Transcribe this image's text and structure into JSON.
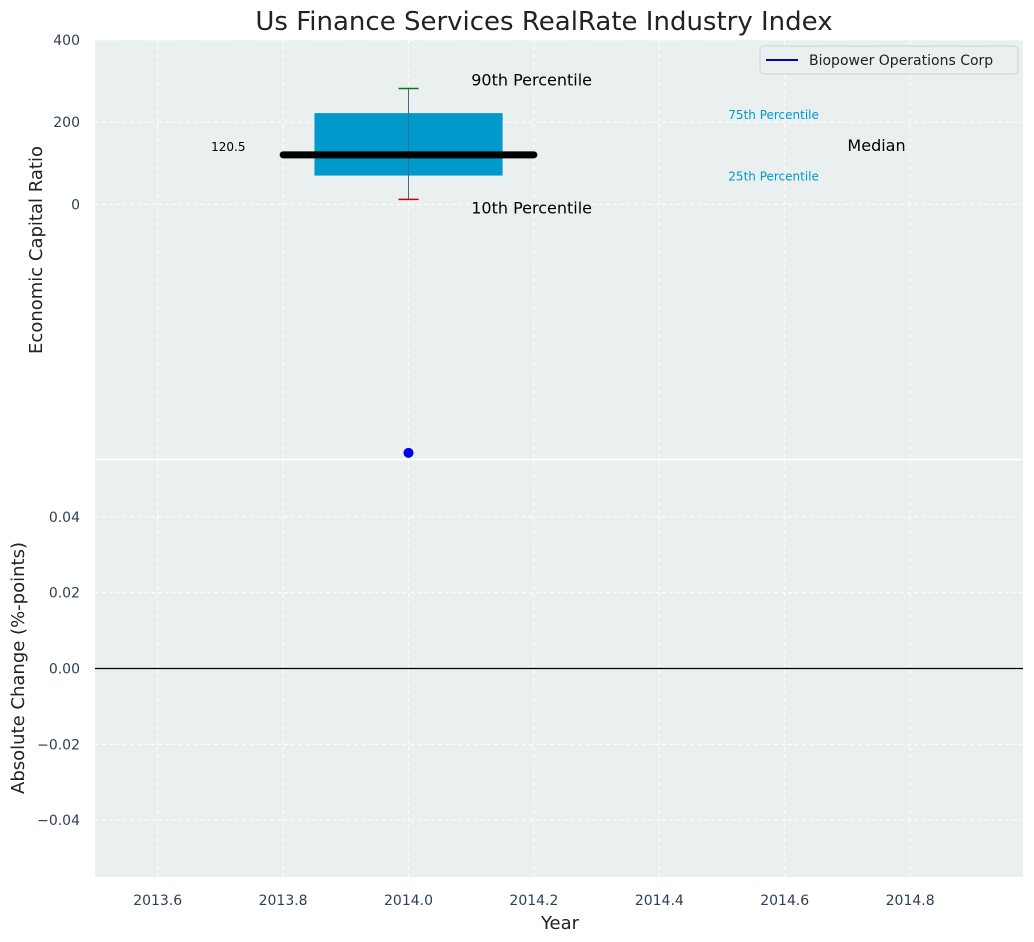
{
  "chart_data": [
    {
      "type": "boxplot",
      "title": "Us Finance Services RealRate Industry Index",
      "xlabel": "",
      "ylabel": "Economic Capital Ratio",
      "ylim": [
        -620,
        400
      ],
      "yticks": [
        0,
        200,
        400
      ],
      "xlim": [
        2013.5,
        2014.98
      ],
      "grid": true,
      "legend": {
        "position": "top-right",
        "entries": [
          {
            "label": "Biopower Operations Corp",
            "color": "#0000cc"
          }
        ]
      },
      "box": {
        "x": 2014.0,
        "p10": 12,
        "p25": 70,
        "median": 120.5,
        "p75": 222,
        "p90": 282
      },
      "median_label": "120.5",
      "company_series": {
        "name": "Biopower Operations Corp",
        "x": [
          2014.0
        ],
        "y": [
          -605
        ]
      },
      "annotations": {
        "p90": "90th Percentile",
        "p10": "10th Percentile",
        "p75": "75th Percentile",
        "p25": "25th Percentile",
        "median": "Median"
      },
      "colors": {
        "box": "#0099cc",
        "median": "#000000",
        "p90_whisker": "#008000",
        "p10_whisker": "#cc0000",
        "company": "#0000ee",
        "panel_bg": "#eaeff0"
      }
    },
    {
      "type": "line",
      "title": "",
      "xlabel": "Year",
      "ylabel": "Absolute Change (%-points)",
      "ylim": [
        -0.055,
        0.055
      ],
      "yticks": [
        -0.04,
        -0.02,
        0.0,
        0.02,
        0.04
      ],
      "ytick_labels": [
        "−0.04",
        "−0.02",
        "0.00",
        "0.02",
        "0.04"
      ],
      "xlim": [
        2013.5,
        2014.98
      ],
      "xticks": [
        2013.6,
        2013.8,
        2014.0,
        2014.2,
        2014.4,
        2014.6,
        2014.8
      ],
      "xtick_labels": [
        "2013.6",
        "2013.8",
        "2014.0",
        "2014.2",
        "2014.4",
        "2014.6",
        "2014.8"
      ],
      "reference_line": 0.0,
      "grid": true
    }
  ]
}
